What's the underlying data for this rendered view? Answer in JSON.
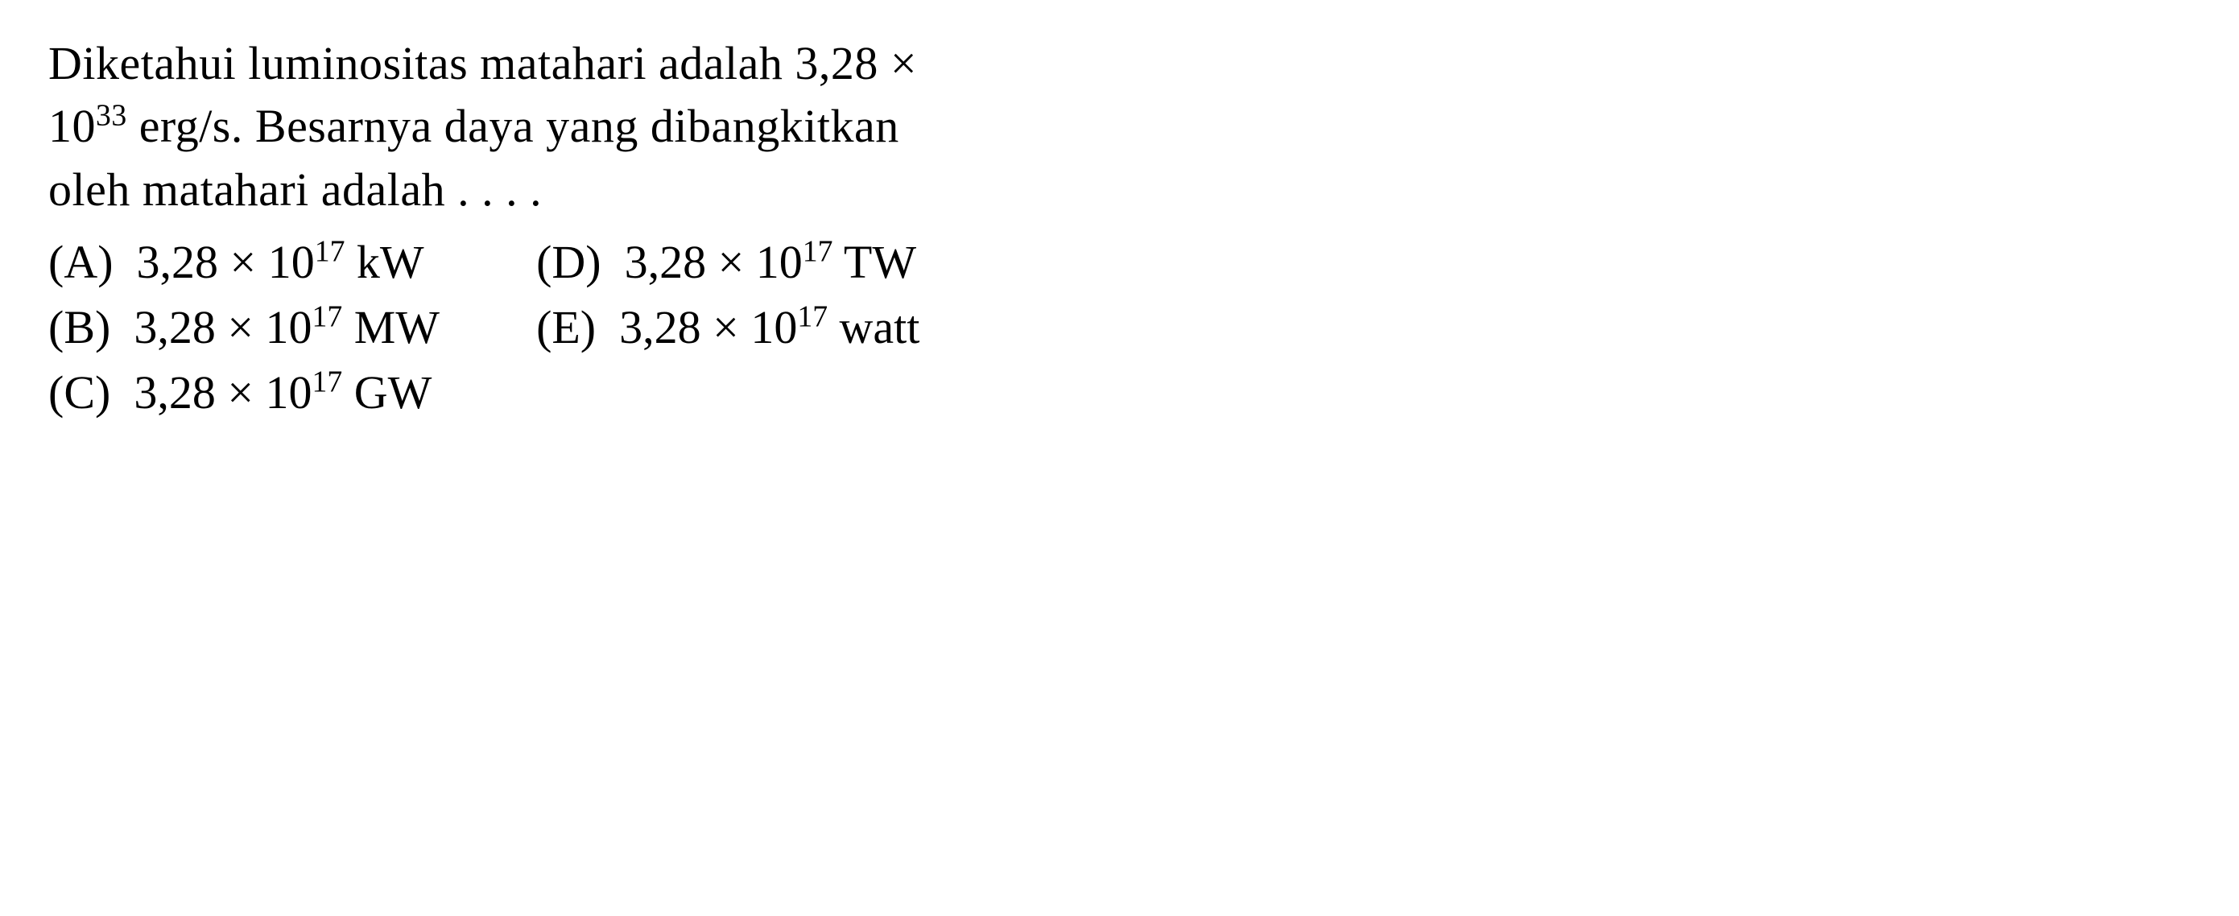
{
  "question": {
    "text_part1": "Diketahui luminositas matahari adalah 3,28 ×",
    "text_part2_prefix": "10",
    "text_part2_sup": "33",
    "text_part2_suffix": " erg/s. Besarnya daya yang dibangkitkan",
    "text_part3": "oleh matahari adalah . . . ."
  },
  "options": {
    "left": [
      {
        "label": "(A)",
        "value_prefix": "3,28 × 10",
        "value_sup": "17",
        "value_unit": " kW"
      },
      {
        "label": "(B)",
        "value_prefix": "3,28 × 10",
        "value_sup": "17",
        "value_unit": " MW"
      },
      {
        "label": "(C)",
        "value_prefix": "3,28 × 10",
        "value_sup": "17",
        "value_unit": " GW"
      }
    ],
    "right": [
      {
        "label": "(D)",
        "value_prefix": "3,28 × 10",
        "value_sup": "17",
        "value_unit": " TW"
      },
      {
        "label": "(E)",
        "value_prefix": "3,28 × 10",
        "value_sup": "17",
        "value_unit": " watt"
      }
    ]
  },
  "styling": {
    "font_family": "Times New Roman",
    "font_size_pt": 58,
    "text_color": "#000000",
    "background_color": "#ffffff"
  }
}
